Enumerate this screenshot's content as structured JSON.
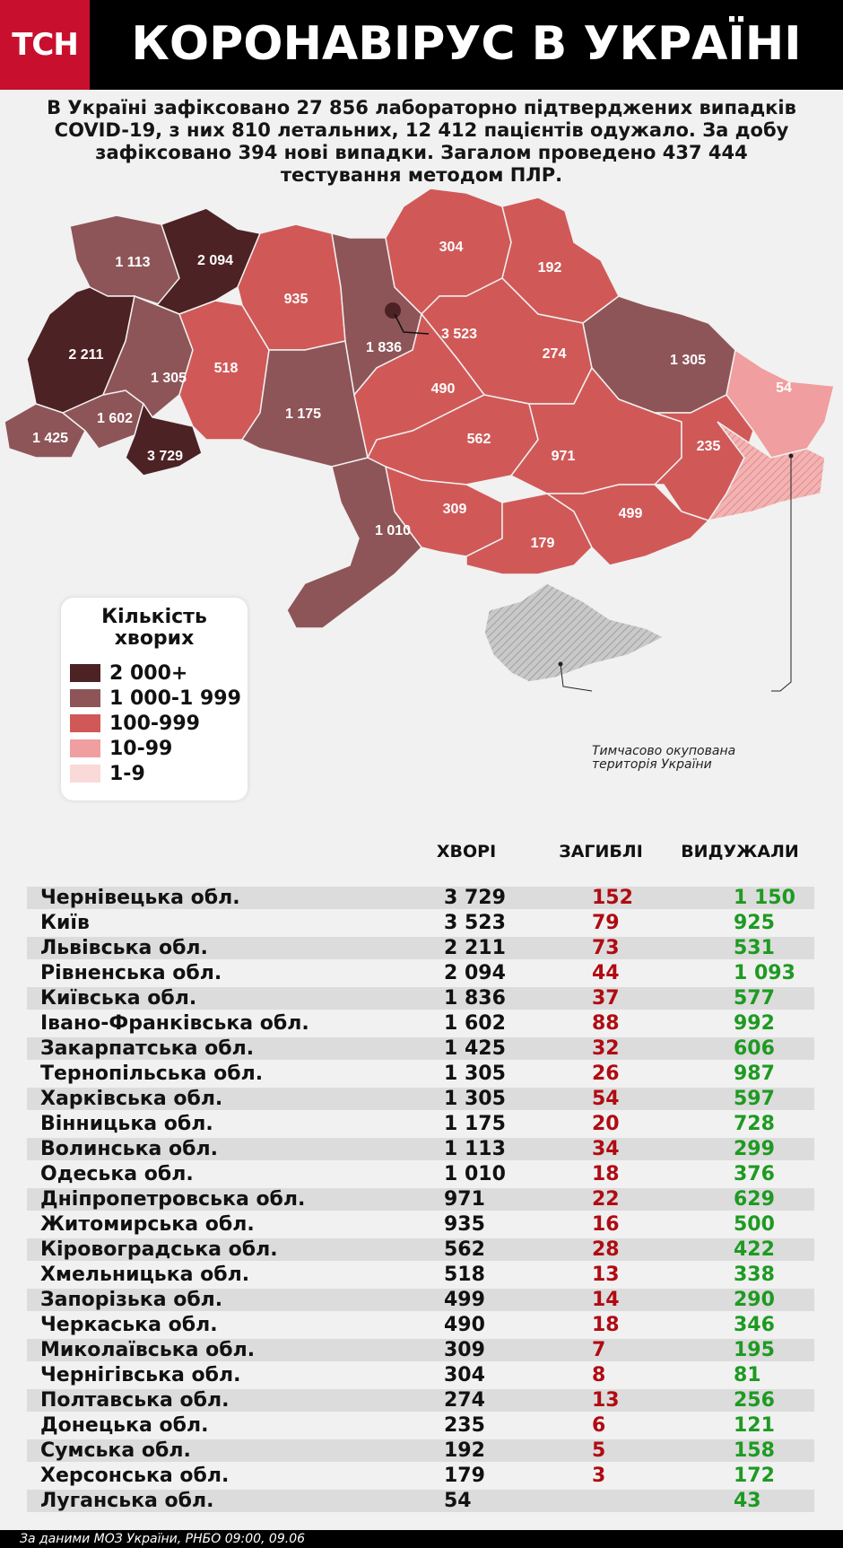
{
  "header": {
    "logo": "ТСН",
    "title": "КОРОНАВІРУС В УКРАЇНІ"
  },
  "summary": "В Україні зафіксовано 27 856 лабораторно підтверджених випадків COVID-19, з них 810 летальних, 12 412 пацієнтів одужало. За добу зафіксовано 394 нові випадки. Загалом проведено 437 444 тестування методом ПЛР.",
  "colors": {
    "level_2000": "#4d2224",
    "level_1000": "#8e5558",
    "level_100": "#d05958",
    "level_10": "#f09e9f",
    "level_1": "#fad9d9",
    "red": "#b00b12",
    "green": "#1e9a22"
  },
  "map": {
    "labels": [
      "1 113",
      "2 094",
      "935",
      "304",
      "192",
      "2 211",
      "1 305",
      "518",
      "1 836",
      "3 523",
      "274",
      "1 305",
      "54",
      "1 602",
      "1 175",
      "490",
      "1 425",
      "3 729",
      "562",
      "971",
      "235",
      "309",
      "499",
      "1 010",
      "179"
    ],
    "occupied_note": "Тимчасово окупована територія України"
  },
  "legend": {
    "title": "Кількість хворих",
    "items": [
      {
        "label": "2 000+",
        "color": "#4d2224"
      },
      {
        "label": "1 000-1 999",
        "color": "#8e5558"
      },
      {
        "label": "100-999",
        "color": "#d05958"
      },
      {
        "label": "10-99",
        "color": "#f09e9f"
      },
      {
        "label": "1-9",
        "color": "#fad9d9"
      }
    ]
  },
  "table": {
    "headers": {
      "sick": "ХВОРІ",
      "dead": "ЗАГИБЛІ",
      "recovered": "ВИДУЖАЛИ"
    },
    "rows": [
      {
        "region": "Чернівецька обл.",
        "sick": "3 729",
        "dead": "152",
        "recovered": "1 150"
      },
      {
        "region": "Київ",
        "sick": "3 523",
        "dead": "79",
        "recovered": "925"
      },
      {
        "region": "Львівська обл.",
        "sick": "2 211",
        "dead": "73",
        "recovered": "531"
      },
      {
        "region": "Рівненська обл.",
        "sick": "2 094",
        "dead": "44",
        "recovered": "1 093"
      },
      {
        "region": "Київська обл.",
        "sick": "1 836",
        "dead": "37",
        "recovered": "577"
      },
      {
        "region": "Івано-Франківська обл.",
        "sick": "1 602",
        "dead": "88",
        "recovered": "992"
      },
      {
        "region": "Закарпатська обл.",
        "sick": "1 425",
        "dead": "32",
        "recovered": "606"
      },
      {
        "region": "Тернопільська обл.",
        "sick": "1 305",
        "dead": "26",
        "recovered": "987"
      },
      {
        "region": "Харківська обл.",
        "sick": "1 305",
        "dead": "54",
        "recovered": "597"
      },
      {
        "region": "Вінницька обл.",
        "sick": "1 175",
        "dead": "20",
        "recovered": "728"
      },
      {
        "region": "Волинська обл.",
        "sick": "1 113",
        "dead": "34",
        "recovered": "299"
      },
      {
        "region": "Одеська обл.",
        "sick": "1 010",
        "dead": "18",
        "recovered": "376"
      },
      {
        "region": "Дніпропетровська обл.",
        "sick": "971",
        "dead": "22",
        "recovered": "629"
      },
      {
        "region": "Житомирська обл.",
        "sick": "935",
        "dead": "16",
        "recovered": "500"
      },
      {
        "region": "Кіровоградська обл.",
        "sick": "562",
        "dead": "28",
        "recovered": "422"
      },
      {
        "region": "Хмельницька обл.",
        "sick": "518",
        "dead": "13",
        "recovered": "338"
      },
      {
        "region": "Запорізька обл.",
        "sick": "499",
        "dead": "14",
        "recovered": "290"
      },
      {
        "region": "Черкаська обл.",
        "sick": "490",
        "dead": "18",
        "recovered": "346"
      },
      {
        "region": "Миколаївська обл.",
        "sick": "309",
        "dead": "7",
        "recovered": "195"
      },
      {
        "region": "Чернігівська обл.",
        "sick": "304",
        "dead": "8",
        "recovered": "81"
      },
      {
        "region": "Полтавська обл.",
        "sick": "274",
        "dead": "13",
        "recovered": "256"
      },
      {
        "region": "Донецька обл.",
        "sick": "235",
        "dead": "6",
        "recovered": "121"
      },
      {
        "region": "Сумська обл.",
        "sick": "192",
        "dead": "5",
        "recovered": "158"
      },
      {
        "region": "Херсонська обл.",
        "sick": "179",
        "dead": "3",
        "recovered": "172"
      },
      {
        "region": "Луганська обл.",
        "sick": "54",
        "dead": "",
        "recovered": "43"
      }
    ]
  },
  "footer": "За даними МОЗ України, РНБО  09:00, 09.06"
}
